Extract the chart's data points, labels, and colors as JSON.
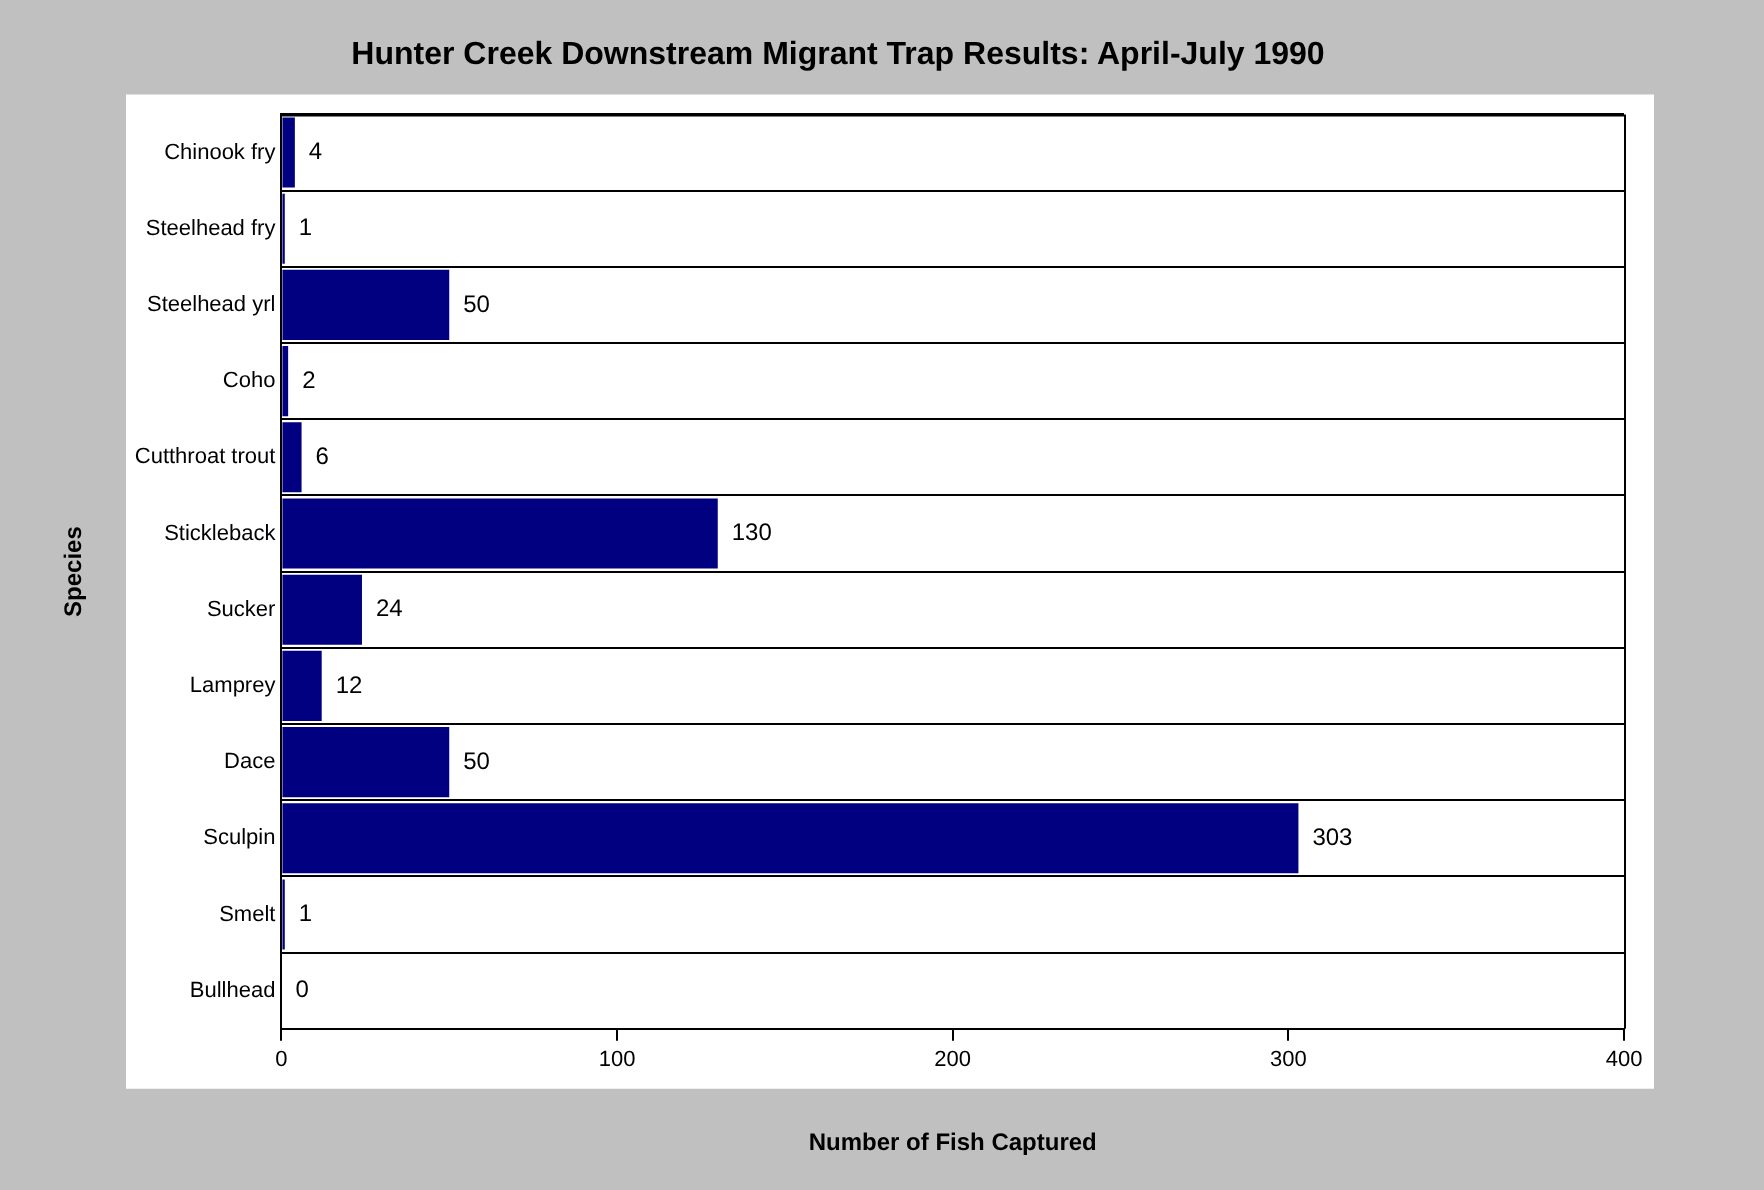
{
  "chart_data": {
    "type": "bar",
    "orientation": "horizontal",
    "title": "Hunter Creek Downstream Migrant Trap Results: April-July 1990",
    "xlabel": "Number of Fish Captured",
    "ylabel": "Species",
    "categories": [
      "Chinook fry",
      "Steelhead fry",
      "Steelhead yrl",
      "Coho",
      "Cutthroat trout",
      "Stickleback",
      "Sucker",
      "Lamprey",
      "Dace",
      "Sculpin",
      "Smelt",
      "Bullhead"
    ],
    "values": [
      4,
      1,
      50,
      2,
      6,
      130,
      24,
      12,
      50,
      303,
      1,
      0
    ],
    "color": "#000080",
    "xlim": [
      0,
      400
    ],
    "xticks": [
      0,
      100,
      200,
      300,
      400
    ],
    "grid": "y",
    "data_labels": true,
    "legend": false
  }
}
